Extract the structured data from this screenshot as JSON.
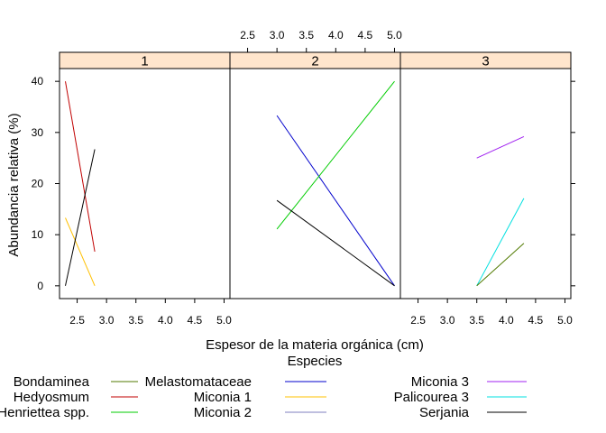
{
  "chart_data": {
    "type": "line",
    "xlabel": "Espesor de la materia orgánica (cm)",
    "ylabel": "Abundancia relativa (%)",
    "xlim": [
      2.2,
      5.1
    ],
    "ylim": [
      -2.5,
      42.5
    ],
    "xticks": [
      "2.5",
      "3.0",
      "3.5",
      "4.0",
      "4.5",
      "5.0"
    ],
    "yticks": [
      "0",
      "10",
      "20",
      "30",
      "40"
    ],
    "legend_title": "Especies",
    "legend_position": "bottom",
    "panels": [
      {
        "label": "1",
        "series": [
          {
            "name": "Hedyosmum",
            "color": "#c00000",
            "x": [
              2.3,
              2.8
            ],
            "y": [
              40,
              6.7
            ]
          },
          {
            "name": "Miconia 1",
            "color": "#ffc000",
            "x": [
              2.3,
              2.8
            ],
            "y": [
              13.3,
              0
            ]
          },
          {
            "name": "Serjania",
            "color": "#000000",
            "x": [
              2.3,
              2.8
            ],
            "y": [
              0,
              26.7
            ]
          }
        ]
      },
      {
        "label": "2",
        "series": [
          {
            "name": "Melastomataceae",
            "color": "#0000cc",
            "x": [
              3.0,
              5.0
            ],
            "y": [
              33.3,
              0
            ]
          },
          {
            "name": "Henriettea spp.",
            "color": "#00cc00",
            "x": [
              3.0,
              5.0
            ],
            "y": [
              11.1,
              40
            ]
          },
          {
            "name": "Serjania",
            "color": "#000000",
            "x": [
              3.0,
              5.0
            ],
            "y": [
              16.7,
              0
            ]
          }
        ]
      },
      {
        "label": "3",
        "series": [
          {
            "name": "Miconia 3",
            "color": "#a020f0",
            "x": [
              3.5,
              4.3
            ],
            "y": [
              25,
              29.2
            ]
          },
          {
            "name": "Palicourea 3",
            "color": "#00e0e0",
            "x": [
              3.5,
              4.3
            ],
            "y": [
              0,
              17.1
            ]
          },
          {
            "name": "Bondaminea",
            "color": "#507a00",
            "x": [
              3.5,
              4.3
            ],
            "y": [
              0,
              8.3
            ]
          }
        ]
      }
    ],
    "legend": [
      {
        "label": "Bondaminea",
        "color": "#507a00"
      },
      {
        "label": "Hedyosmum",
        "color": "#c00000"
      },
      {
        "label": "Henriettea spp.",
        "color": "#00cc00"
      },
      {
        "label": "Melastomataceae",
        "color": "#0000cc"
      },
      {
        "label": "Miconia 1",
        "color": "#ffc000"
      },
      {
        "label": "Miconia 2",
        "color": "#7f7fbf"
      },
      {
        "label": "Miconia 3",
        "color": "#a020f0"
      },
      {
        "label": "Palicourea 3",
        "color": "#00e0e0"
      },
      {
        "label": "Serjania",
        "color": "#000000"
      }
    ],
    "strip_color": "#ffe5cc",
    "grid": false
  }
}
